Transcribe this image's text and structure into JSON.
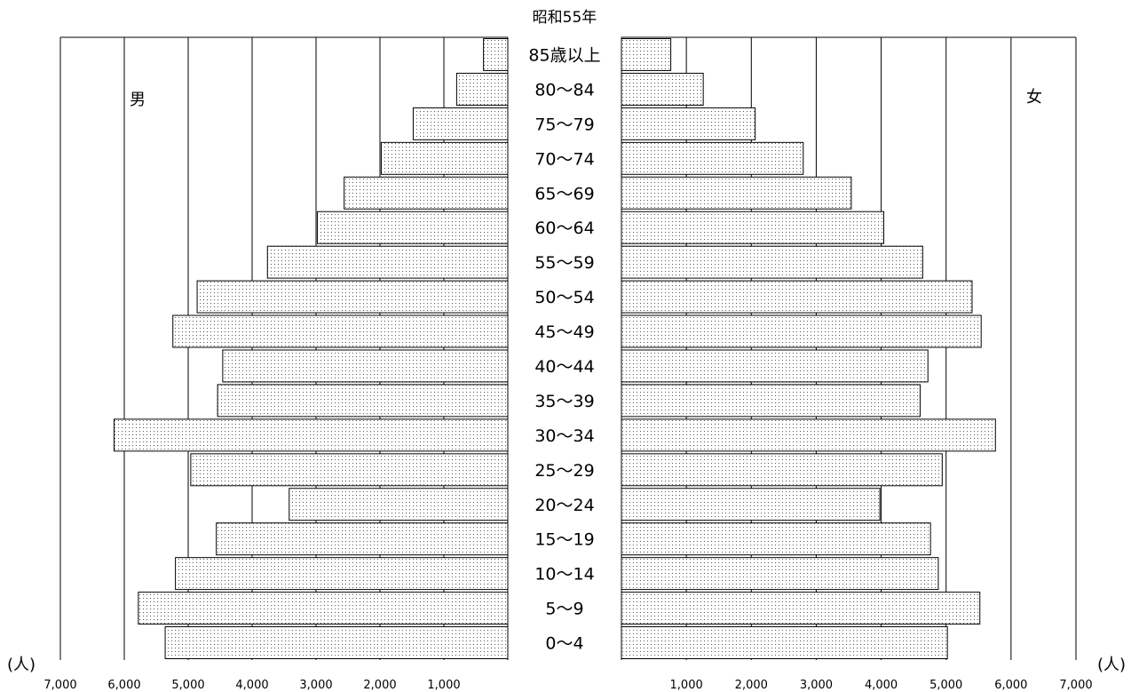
{
  "chart_data": {
    "type": "bar",
    "title": "昭和55年",
    "xlabel": "(人)",
    "categories": [
      "85歳以上",
      "80〜84",
      "75〜79",
      "70〜74",
      "65〜69",
      "60〜64",
      "55〜59",
      "50〜54",
      "45〜49",
      "40〜44",
      "35〜39",
      "30〜34",
      "25〜29",
      "20〜24",
      "15〜19",
      "10〜14",
      "5〜9",
      "0〜4"
    ],
    "series": [
      {
        "name": "男",
        "side": "left",
        "values": [
          380,
          800,
          1480,
          1980,
          2560,
          2980,
          3760,
          4860,
          5240,
          4460,
          4540,
          6160,
          4960,
          3420,
          4560,
          5200,
          5780,
          5360
        ]
      },
      {
        "name": "女",
        "side": "right",
        "values": [
          760,
          1260,
          2060,
          2800,
          3540,
          4040,
          4640,
          5400,
          5540,
          4720,
          4600,
          5760,
          4940,
          3980,
          4760,
          4880,
          5520,
          5020
        ]
      }
    ],
    "xlim": [
      0,
      7000
    ],
    "left_ticks": [
      "7,000",
      "6,000",
      "5,000",
      "4,000",
      "3,000",
      "2,000",
      "1,000"
    ],
    "left_tick_values": [
      7000,
      6000,
      5000,
      4000,
      3000,
      2000,
      1000
    ],
    "right_ticks": [
      "1,000",
      "2,000",
      "3,000",
      "4,000",
      "5,000",
      "6,000",
      "7,000"
    ],
    "right_tick_values": [
      1000,
      2000,
      3000,
      4000,
      5000,
      6000,
      7000
    ],
    "grid": "vertical",
    "bar_fill": "dotted"
  }
}
